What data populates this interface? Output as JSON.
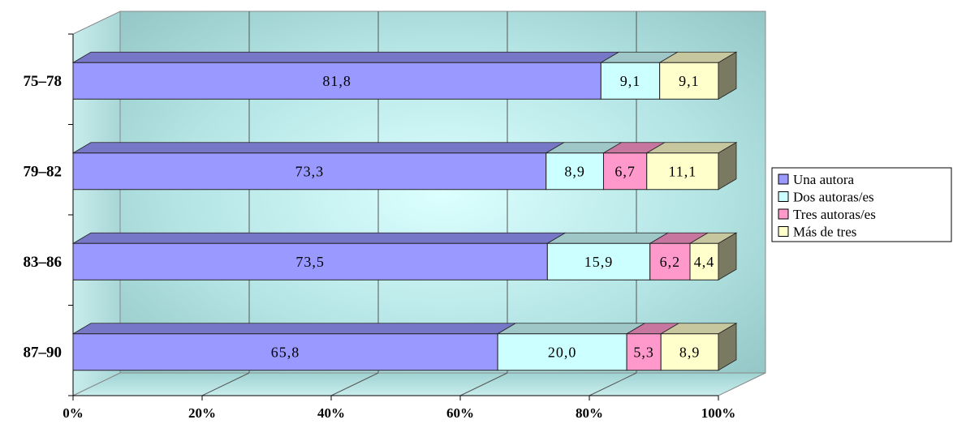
{
  "chart_data": {
    "type": "bar",
    "orientation": "horizontal",
    "stacked": "percent",
    "three_d": true,
    "categories": [
      "75-78",
      "79-82",
      "83-86",
      "87-90"
    ],
    "series": [
      {
        "name": "Una autora",
        "values": [
          81.8,
          73.3,
          73.5,
          65.8
        ],
        "labels": [
          "81,8",
          "73,3",
          "73,5",
          "65,8"
        ],
        "color": "#9999ff"
      },
      {
        "name": "Dos autoras/es",
        "values": [
          9.1,
          8.9,
          15.9,
          20.0
        ],
        "labels": [
          "9,1",
          "8,9",
          "15,9",
          "20,0"
        ],
        "color": "#ccffff"
      },
      {
        "name": "Tres autoras/es",
        "values": [
          0,
          6.7,
          6.2,
          5.3
        ],
        "labels": [
          "",
          "6,7",
          "6,2",
          "5,3"
        ],
        "color": "#ff99cc"
      },
      {
        "name": "Más de tres",
        "values": [
          9.1,
          11.1,
          4.4,
          8.9
        ],
        "labels": [
          "9,1",
          "11,1",
          "4,4",
          "8,9"
        ],
        "color": "#ffffcc"
      }
    ],
    "xticks": [
      "0%",
      "20%",
      "40%",
      "60%",
      "80%",
      "100%"
    ],
    "xlim": [
      0,
      100
    ],
    "grid": true,
    "legend_position": "right",
    "title": "",
    "xlabel": "",
    "ylabel": ""
  }
}
